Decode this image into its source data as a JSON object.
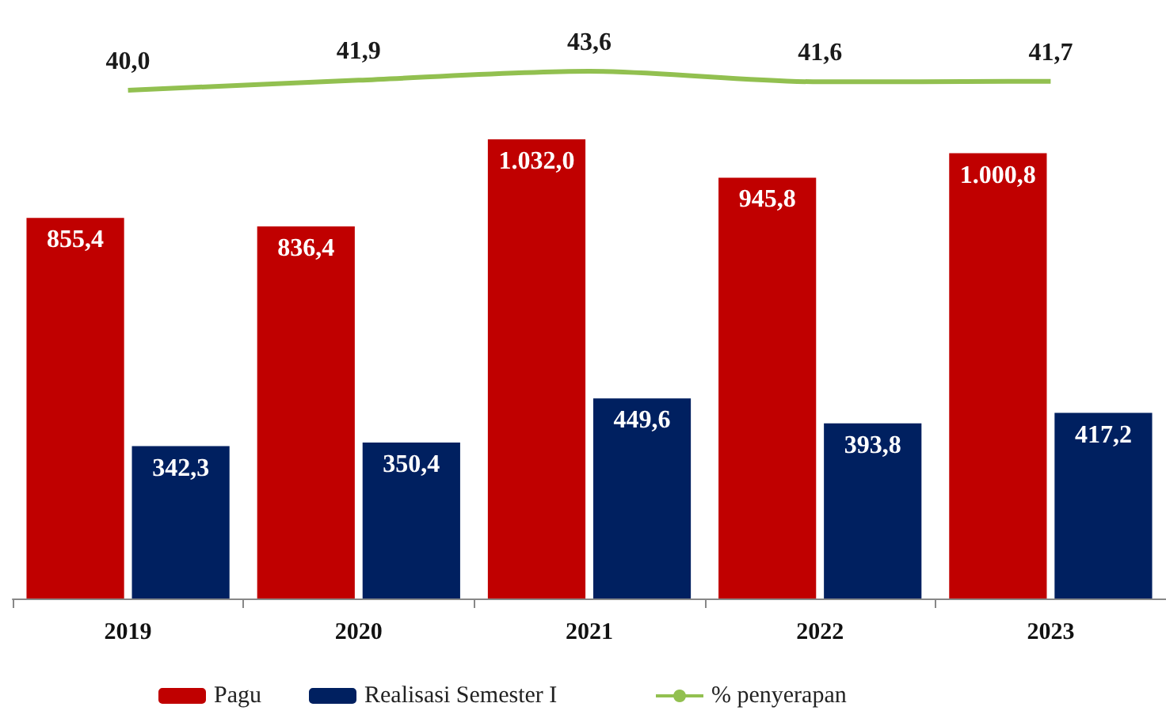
{
  "chart_data": [
    {
      "type": "line",
      "categories": [
        "2019",
        "2020",
        "2021",
        "2022",
        "2023"
      ],
      "series": [
        {
          "name": "% penyerapan",
          "color": "#92c050",
          "values": [
            40.0,
            41.9,
            43.6,
            41.6,
            41.7
          ],
          "value_labels": [
            "40,0",
            "41,9",
            "43,6",
            "41,6",
            "41,7"
          ]
        }
      ],
      "tick_labels": false,
      "grid": false,
      "legend": "bottom",
      "marker": "none"
    },
    {
      "type": "bar",
      "categories": [
        "2019",
        "2020",
        "2021",
        "2022",
        "2023"
      ],
      "series": [
        {
          "name": "Pagu",
          "color": "#c00000",
          "values": [
            855.4,
            836.4,
            1032.0,
            945.8,
            1000.8
          ],
          "value_labels": [
            "855,4",
            "836,4",
            "1.032,0",
            "945,8",
            "1.000,8"
          ]
        },
        {
          "name": "Realisasi Semester I",
          "color": "#002060",
          "values": [
            342.3,
            350.4,
            449.6,
            393.8,
            417.2
          ],
          "value_labels": [
            "342,3",
            "350,4",
            "449,6",
            "393,8",
            "417,2"
          ]
        }
      ],
      "tick_labels": "x",
      "grid": false,
      "legend": "bottom"
    }
  ]
}
